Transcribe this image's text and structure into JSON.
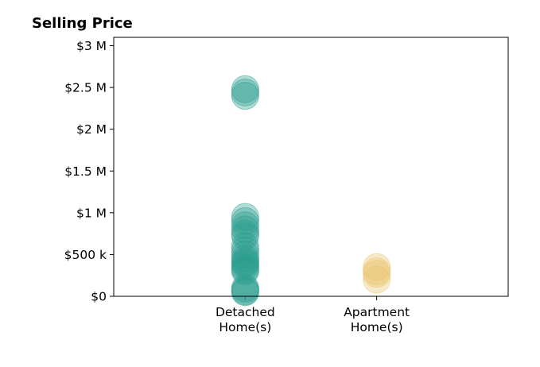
{
  "chart_data": {
    "type": "scatter",
    "title": "Selling Price",
    "categories": [
      "Detached\nHome(s)",
      "Apartment\nHome(s)"
    ],
    "ylim": [
      0,
      3100000
    ],
    "yticks": [
      {
        "value": 0,
        "label": "$0"
      },
      {
        "value": 500000,
        "label": "$500 k"
      },
      {
        "value": 1000000,
        "label": "$1 M"
      },
      {
        "value": 1500000,
        "label": "$1.5 M"
      },
      {
        "value": 2000000,
        "label": "$2 M"
      },
      {
        "value": 2500000,
        "label": "$2.5 M"
      },
      {
        "value": 3000000,
        "label": "$3 M"
      }
    ],
    "xlim": [
      -1,
      2
    ],
    "grid": false,
    "series": [
      {
        "category": "Detached\nHome(s)",
        "color": "#2a9d8f",
        "values": [
          2400000,
          2480000,
          2440000,
          950000,
          900000,
          850000,
          800000,
          750000,
          720000,
          600000,
          550000,
          500000,
          450000,
          420000,
          400000,
          380000,
          350000,
          320000,
          300000,
          100000,
          80000,
          60000,
          50000
        ]
      },
      {
        "category": "Apartment\nHome(s)",
        "color": "#e9c46a",
        "values": [
          350000,
          300000,
          270000,
          200000
        ]
      }
    ]
  }
}
